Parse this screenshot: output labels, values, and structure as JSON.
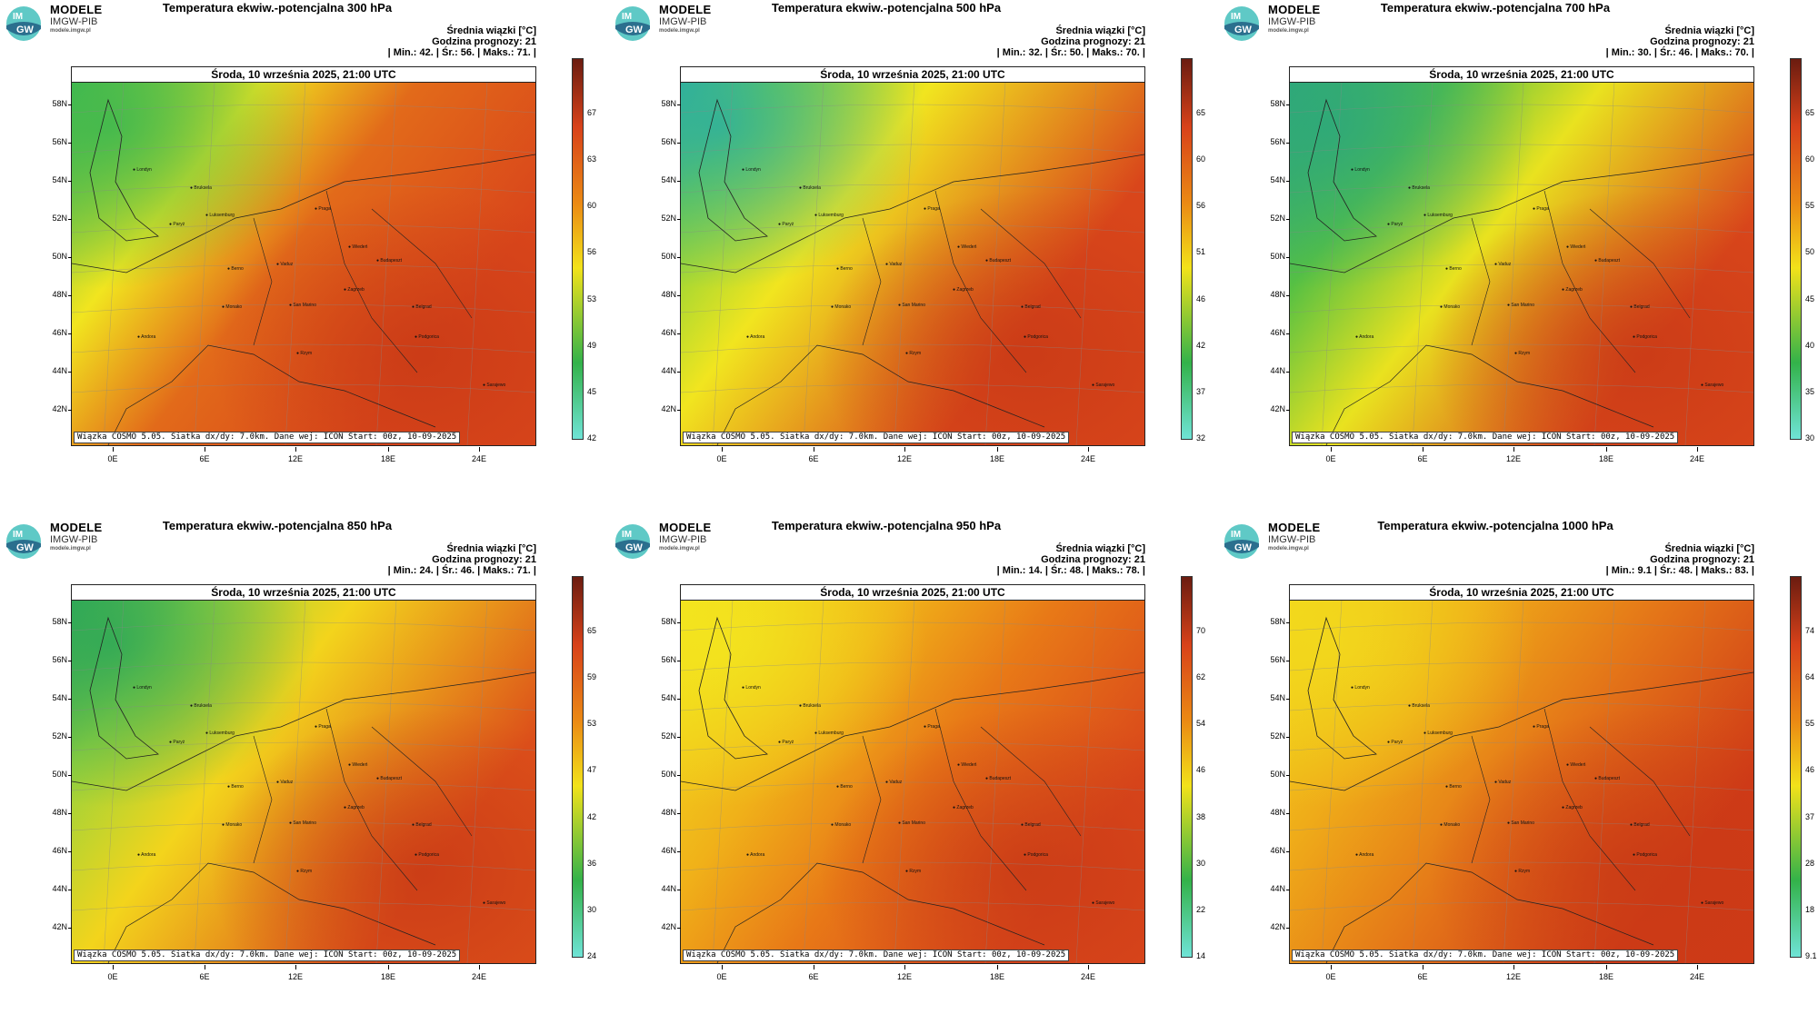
{
  "logo": {
    "title": "MODELE",
    "subtitle": "IMGW-PIB",
    "url": "modele.imgw.pl",
    "mark_top": "IM",
    "mark_bottom": "GW"
  },
  "stat_labels": {
    "mean": "Średnia wiązki [°C]",
    "forecast_hour_label": "Godzina prognozy:",
    "forecast_hour": "21",
    "min": "Min.:",
    "avg": "Śr.:",
    "max": "Maks.:"
  },
  "date_line": "Środa, 10 września 2025, 21:00 UTC",
  "footer": "Wiązka COSMO 5.05. Siatka dx/dy: 7.0km. Dane wej: ICON Start: 00z, 10-09-2025",
  "lat_labels": [
    "58N",
    "56N",
    "54N",
    "52N",
    "50N",
    "48N",
    "46N",
    "44N",
    "42N"
  ],
  "lon_labels": [
    "0E",
    "6E",
    "12E",
    "18E",
    "24E"
  ],
  "cities": [
    "Londyn",
    "Bruksela",
    "Luksemburg",
    "Paryż",
    "Praga",
    "Wiedeń",
    "Budapeszt",
    "Berno",
    "Vaduz",
    "Zagrzeb",
    "Monako",
    "San Marino",
    "Belgrad",
    "Sarajewo",
    "Andora",
    "Podgorica",
    "Rzym"
  ],
  "colors": {
    "cyan": "#6fe3d6",
    "green": "#33b24a",
    "yellow": "#f2e21a",
    "orange": "#eb8a14",
    "red": "#d8421a",
    "darkred": "#6b1c10"
  },
  "panels": [
    {
      "title": "Temperatura ekwiw.-potencjalna 300 hPa",
      "min": "42.",
      "avg": "56.",
      "max": "71.",
      "cbar": [
        "67",
        "63",
        "60",
        "56",
        "53",
        "49",
        "45",
        "42"
      ]
    },
    {
      "title": "Temperatura ekwiw.-potencjalna 500 hPa",
      "min": "32.",
      "avg": "50.",
      "max": "70.",
      "cbar": [
        "65",
        "60",
        "56",
        "51",
        "46",
        "42",
        "37",
        "32"
      ]
    },
    {
      "title": "Temperatura ekwiw.-potencjalna 700 hPa",
      "min": "30.",
      "avg": "46.",
      "max": "70.",
      "cbar": [
        "65",
        "60",
        "55",
        "50",
        "45",
        "40",
        "35",
        "30"
      ]
    },
    {
      "title": "Temperatura ekwiw.-potencjalna 850 hPa",
      "min": "24.",
      "avg": "46.",
      "max": "71.",
      "cbar": [
        "65",
        "59",
        "53",
        "47",
        "42",
        "36",
        "30",
        "24"
      ]
    },
    {
      "title": "Temperatura ekwiw.-potencjalna 950 hPa",
      "min": "14.",
      "avg": "48.",
      "max": "78.",
      "cbar": [
        "70",
        "62",
        "54",
        "46",
        "38",
        "30",
        "22",
        "14"
      ]
    },
    {
      "title": "Temperatura ekwiw.-potencjalna 1000 hPa",
      "min": "9.1",
      "avg": "48.",
      "max": "83.",
      "cbar": [
        "74",
        "64",
        "55",
        "46",
        "37",
        "28",
        "18",
        "9.1"
      ]
    }
  ]
}
